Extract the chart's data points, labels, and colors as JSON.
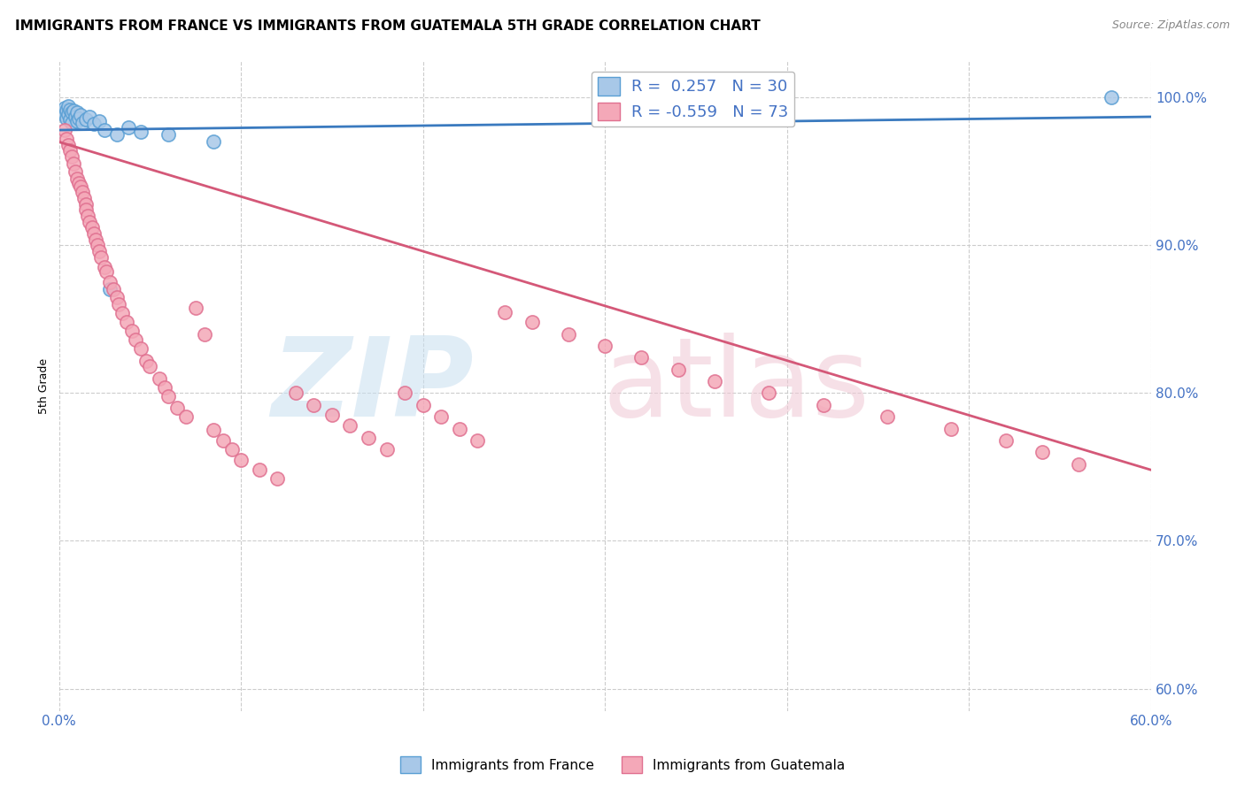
{
  "title": "IMMIGRANTS FROM FRANCE VS IMMIGRANTS FROM GUATEMALA 5TH GRADE CORRELATION CHART",
  "source": "Source: ZipAtlas.com",
  "ylabel": "5th Grade",
  "xlim": [
    0.0,
    0.6
  ],
  "ylim": [
    0.585,
    1.025
  ],
  "yticks": [
    0.6,
    0.7,
    0.8,
    0.9,
    1.0
  ],
  "ytick_labels": [
    "60.0%",
    "70.0%",
    "80.0%",
    "90.0%",
    "100.0%"
  ],
  "xticks": [
    0.0,
    0.1,
    0.2,
    0.3,
    0.4,
    0.5,
    0.6
  ],
  "france_color": "#a8c8e8",
  "france_edge_color": "#5a9fd4",
  "guatemala_color": "#f4a8b8",
  "guatemala_edge_color": "#e07090",
  "france_line_color": "#3a7abf",
  "guatemala_line_color": "#d45878",
  "legend_france_label": "R =  0.257   N = 30",
  "legend_guatemala_label": "R = -0.559   N = 73",
  "france_scatter_x": [
    0.002,
    0.003,
    0.003,
    0.004,
    0.004,
    0.005,
    0.005,
    0.006,
    0.006,
    0.007,
    0.007,
    0.008,
    0.009,
    0.01,
    0.01,
    0.011,
    0.012,
    0.013,
    0.015,
    0.017,
    0.019,
    0.022,
    0.025,
    0.028,
    0.032,
    0.038,
    0.045,
    0.06,
    0.085,
    0.578
  ],
  "france_scatter_y": [
    0.99,
    0.993,
    0.988,
    0.991,
    0.986,
    0.994,
    0.989,
    0.992,
    0.985,
    0.99,
    0.983,
    0.991,
    0.987,
    0.984,
    0.99,
    0.986,
    0.988,
    0.983,
    0.985,
    0.987,
    0.982,
    0.984,
    0.978,
    0.87,
    0.975,
    0.98,
    0.977,
    0.975,
    0.97,
    1.0
  ],
  "guatemala_scatter_x": [
    0.003,
    0.004,
    0.005,
    0.006,
    0.007,
    0.008,
    0.009,
    0.01,
    0.011,
    0.012,
    0.013,
    0.014,
    0.015,
    0.015,
    0.016,
    0.017,
    0.018,
    0.019,
    0.02,
    0.021,
    0.022,
    0.023,
    0.025,
    0.026,
    0.028,
    0.03,
    0.032,
    0.033,
    0.035,
    0.037,
    0.04,
    0.042,
    0.045,
    0.048,
    0.05,
    0.055,
    0.058,
    0.06,
    0.065,
    0.07,
    0.075,
    0.08,
    0.085,
    0.09,
    0.095,
    0.1,
    0.11,
    0.12,
    0.13,
    0.14,
    0.15,
    0.16,
    0.17,
    0.18,
    0.19,
    0.2,
    0.21,
    0.22,
    0.23,
    0.245,
    0.26,
    0.28,
    0.3,
    0.32,
    0.34,
    0.36,
    0.39,
    0.42,
    0.455,
    0.49,
    0.52,
    0.54,
    0.56
  ],
  "guatemala_scatter_y": [
    0.978,
    0.972,
    0.968,
    0.964,
    0.96,
    0.955,
    0.95,
    0.945,
    0.942,
    0.94,
    0.936,
    0.932,
    0.928,
    0.924,
    0.92,
    0.916,
    0.912,
    0.908,
    0.904,
    0.9,
    0.896,
    0.892,
    0.885,
    0.882,
    0.875,
    0.87,
    0.865,
    0.86,
    0.854,
    0.848,
    0.842,
    0.836,
    0.83,
    0.822,
    0.818,
    0.81,
    0.804,
    0.798,
    0.79,
    0.784,
    0.858,
    0.84,
    0.775,
    0.768,
    0.762,
    0.755,
    0.748,
    0.742,
    0.8,
    0.792,
    0.785,
    0.778,
    0.77,
    0.762,
    0.8,
    0.792,
    0.784,
    0.776,
    0.768,
    0.855,
    0.848,
    0.84,
    0.832,
    0.824,
    0.816,
    0.808,
    0.8,
    0.792,
    0.784,
    0.776,
    0.768,
    0.76,
    0.752
  ],
  "france_line_x": [
    0.0,
    0.6
  ],
  "france_line_y": [
    0.978,
    0.987
  ],
  "guatemala_line_x": [
    0.0,
    0.6
  ],
  "guatemala_line_y": [
    0.97,
    0.748
  ],
  "watermark_zip": "ZIP",
  "watermark_atlas": "atlas",
  "legend_france_patch": "Immigrants from France",
  "legend_guatemala_patch": "Immigrants from Guatemala",
  "grid_color": "#cccccc",
  "grid_style": "--"
}
